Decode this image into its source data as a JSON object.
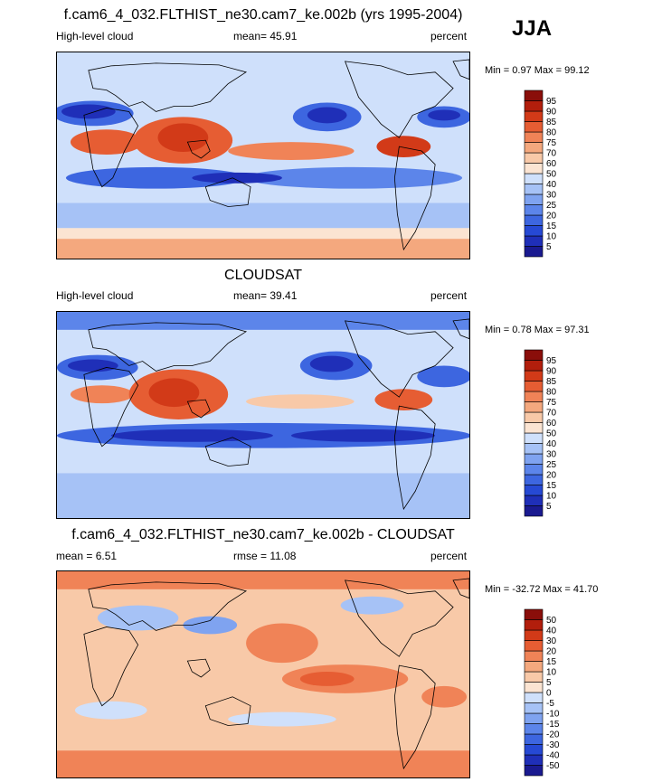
{
  "season": "JJA",
  "palette": [
    "#1a1a90",
    "#1f2fb8",
    "#2649d4",
    "#3d66e0",
    "#5c85ea",
    "#7fa3f0",
    "#a6c2f6",
    "#cfe0fb",
    "#fbe4d2",
    "#f8c9a8",
    "#f4a87e",
    "#f08357",
    "#e65d33",
    "#d23a18",
    "#b21e0c",
    "#8a0e0a"
  ],
  "panels": [
    {
      "title": "f.cam6_4_032.FLTHIST_ne30.cam7_ke.002b (yrs 1995-2004)",
      "left_label": "High-level cloud",
      "center_label": "mean=  45.91",
      "right_label": "percent",
      "min_label": "Min =",
      "min_value": "0.97",
      "max_label": "Max =",
      "max_value": "99.12",
      "levels": [
        "5",
        "10",
        "15",
        "20",
        "25",
        "30",
        "40",
        "50",
        "60",
        "70",
        "75",
        "80",
        "85",
        "90",
        "95"
      ]
    },
    {
      "title": "CLOUDSAT",
      "left_label": "High-level cloud",
      "center_label": "mean=  39.41",
      "right_label": "percent",
      "min_label": "Min =",
      "min_value": "0.78",
      "max_label": "Max =",
      "max_value": "97.31",
      "levels": [
        "5",
        "10",
        "15",
        "20",
        "25",
        "30",
        "40",
        "50",
        "60",
        "70",
        "75",
        "80",
        "85",
        "90",
        "95"
      ]
    },
    {
      "title": "f.cam6_4_032.FLTHIST_ne30.cam7_ke.002b - CLOUDSAT",
      "left_label": "mean =   6.51",
      "center_label": "rmse =  11.08",
      "right_label": "percent",
      "min_label": "Min =",
      "min_value": "-32.72",
      "max_label": "Max =",
      "max_value": "41.70",
      "levels": [
        "-50",
        "-40",
        "-30",
        "-20",
        "-15",
        "-10",
        "-5",
        "0",
        "5",
        "10",
        "15",
        "20",
        "30",
        "40",
        "50"
      ]
    }
  ]
}
